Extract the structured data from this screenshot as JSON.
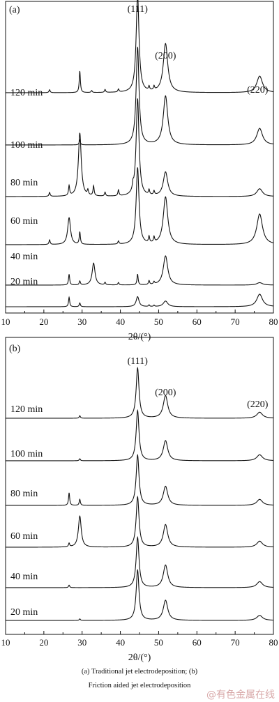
{
  "caption": {
    "line1": "(a)  Traditional jet electrodeposition;  (b)",
    "line2": "Friction aided jet electrodeposition"
  },
  "watermark": "@有色金属在线",
  "chart_data": [
    {
      "type": "line",
      "panel_label": "(a)",
      "xlabel": "2θ/(°)",
      "ylabel": "",
      "xlim": [
        10,
        80
      ],
      "xticks": [
        10,
        20,
        30,
        40,
        50,
        60,
        70,
        80
      ],
      "peak_labels": [
        {
          "text": "(111)",
          "x": 44.5
        },
        {
          "text": "(200)",
          "x": 51.8
        },
        {
          "text": "(220)",
          "x": 76.4
        }
      ],
      "series": [
        {
          "name": "120 min",
          "peaks": [
            [
              21.5,
              0.03
            ],
            [
              29.4,
              0.22
            ],
            [
              32.5,
              0.02
            ],
            [
              36.0,
              0.03
            ],
            [
              39.5,
              0.03
            ],
            [
              44.5,
              1.0
            ],
            [
              47.5,
              0.04
            ],
            [
              48.8,
              0.04
            ],
            [
              51.8,
              0.5
            ],
            [
              76.4,
              0.17
            ]
          ]
        },
        {
          "name": "100 min",
          "peaks": [
            [
              29.4,
              0.05
            ],
            [
              44.5,
              1.0
            ],
            [
              51.8,
              0.5
            ],
            [
              76.4,
              0.17
            ]
          ]
        },
        {
          "name": "80 min",
          "peaks": [
            [
              21.5,
              0.04
            ],
            [
              26.6,
              0.1
            ],
            [
              29.4,
              0.65
            ],
            [
              31.5,
              0.05
            ],
            [
              33.0,
              0.1
            ],
            [
              36.0,
              0.04
            ],
            [
              39.5,
              0.06
            ],
            [
              43.3,
              0.06
            ],
            [
              44.5,
              1.0
            ],
            [
              47.5,
              0.05
            ],
            [
              48.8,
              0.04
            ],
            [
              51.8,
              0.25
            ],
            [
              76.4,
              0.08
            ]
          ]
        },
        {
          "name": "60 min",
          "peaks": [
            [
              21.5,
              0.06
            ],
            [
              26.6,
              0.35
            ],
            [
              29.4,
              0.16
            ],
            [
              39.5,
              0.04
            ],
            [
              44.5,
              1.0
            ],
            [
              47.5,
              0.08
            ],
            [
              48.8,
              0.07
            ],
            [
              51.8,
              0.62
            ],
            [
              76.4,
              0.4
            ]
          ]
        },
        {
          "name": "40 min",
          "peaks": [
            [
              26.6,
              0.22
            ],
            [
              29.4,
              0.08
            ],
            [
              33.0,
              0.45
            ],
            [
              36.0,
              0.05
            ],
            [
              39.5,
              0.05
            ],
            [
              44.5,
              0.22
            ],
            [
              47.5,
              0.08
            ],
            [
              48.8,
              0.05
            ],
            [
              51.8,
              0.6
            ],
            [
              76.4,
              0.05
            ]
          ]
        },
        {
          "name": "20 min",
          "peaks": [
            [
              26.6,
              0.3
            ],
            [
              29.4,
              0.12
            ],
            [
              44.5,
              0.32
            ],
            [
              47.5,
              0.05
            ],
            [
              48.8,
              0.04
            ],
            [
              51.8,
              0.18
            ],
            [
              76.4,
              0.4
            ]
          ]
        }
      ]
    },
    {
      "type": "line",
      "panel_label": "(b)",
      "xlabel": "2θ/(°)",
      "ylabel": "",
      "xlim": [
        10,
        80
      ],
      "xticks": [
        10,
        20,
        30,
        40,
        50,
        60,
        70,
        80
      ],
      "peak_labels": [
        {
          "text": "(111)",
          "x": 44.5
        },
        {
          "text": "(200)",
          "x": 51.8
        },
        {
          "text": "(220)",
          "x": 76.4
        }
      ],
      "series": [
        {
          "name": "120 min",
          "peaks": [
            [
              29.4,
              0.05
            ],
            [
              44.5,
              1.0
            ],
            [
              51.8,
              0.45
            ],
            [
              76.4,
              0.12
            ]
          ]
        },
        {
          "name": "100 min",
          "peaks": [
            [
              29.4,
              0.04
            ],
            [
              44.5,
              1.0
            ],
            [
              51.8,
              0.4
            ],
            [
              76.4,
              0.12
            ]
          ]
        },
        {
          "name": "80 min",
          "peaks": [
            [
              26.6,
              0.25
            ],
            [
              29.4,
              0.12
            ],
            [
              44.5,
              1.0
            ],
            [
              51.8,
              0.38
            ],
            [
              76.4,
              0.12
            ]
          ]
        },
        {
          "name": "60 min",
          "peaks": [
            [
              26.6,
              0.07
            ],
            [
              29.4,
              0.62
            ],
            [
              44.5,
              1.0
            ],
            [
              51.8,
              0.45
            ],
            [
              76.4,
              0.12
            ]
          ]
        },
        {
          "name": "40 min",
          "peaks": [
            [
              26.6,
              0.05
            ],
            [
              44.5,
              1.0
            ],
            [
              51.8,
              0.45
            ],
            [
              76.4,
              0.12
            ]
          ]
        },
        {
          "name": "20 min",
          "peaks": [
            [
              29.4,
              0.03
            ],
            [
              44.5,
              1.0
            ],
            [
              51.8,
              0.4
            ],
            [
              76.4,
              0.1
            ]
          ]
        }
      ]
    }
  ]
}
